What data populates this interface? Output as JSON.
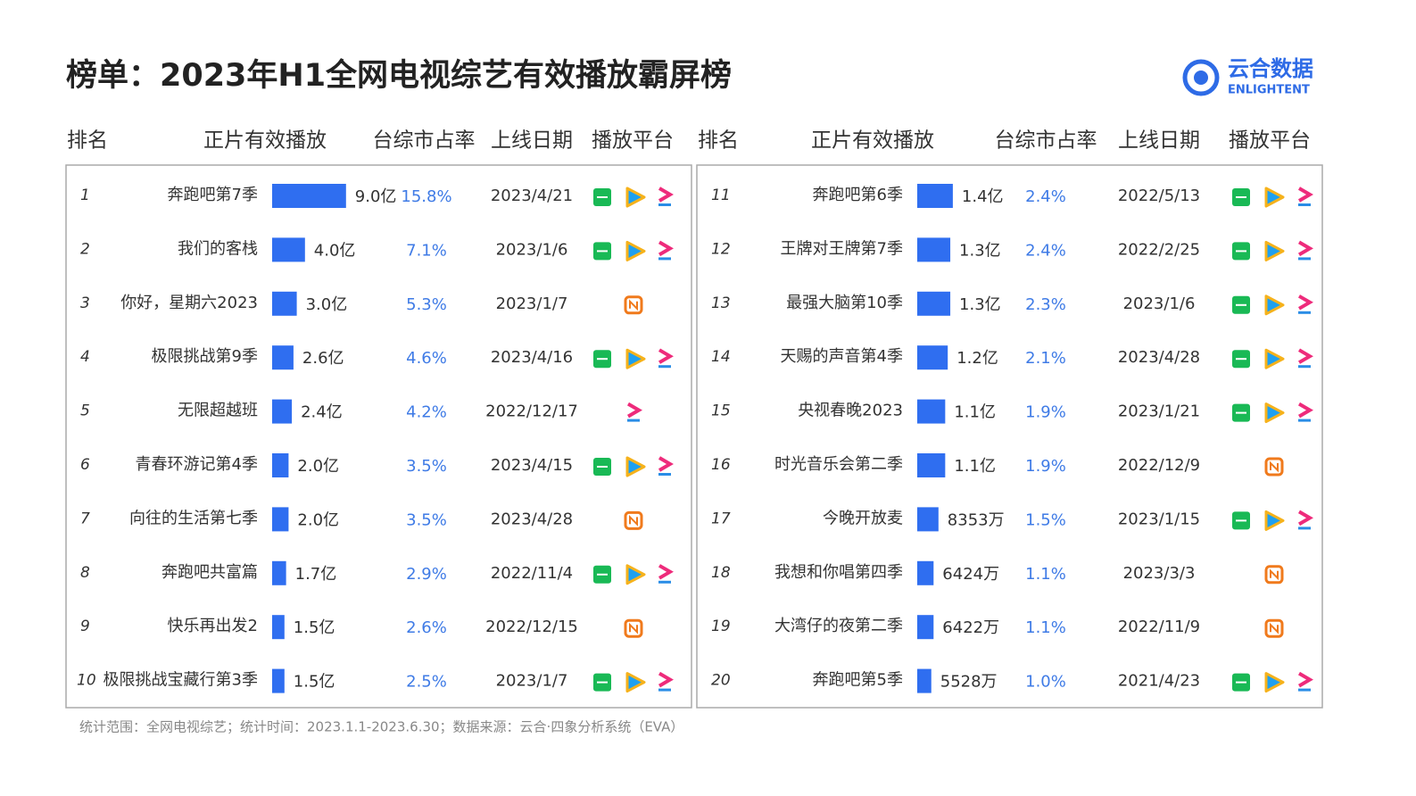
{
  "header": {
    "title": "榜单：2023年H1全网电视综艺有效播放霸屏榜"
  },
  "logo": {
    "name": "云合数据",
    "sub": "ENLIGHTENT"
  },
  "columns": {
    "left": [
      "排名",
      "正片有效播放",
      "台综市占率",
      "上线日期",
      "播放平台"
    ],
    "right": [
      "排名",
      "正片有效播放",
      "台综市占率",
      "上线日期",
      "播放平台"
    ]
  },
  "table": {
    "rows": [
      [
        1,
        "奔跑吧第7季",
        {
          "value": 9.0,
          "label": "9.0亿"
        },
        "15.8%",
        "2023/4/21"
      ],
      [
        2,
        "我们的客栈",
        {
          "value": 4.0,
          "label": "4.0亿"
        },
        "7.1%",
        "2023/1/6"
      ],
      [
        3,
        "你好，星期六2023",
        {
          "value": 3.0,
          "label": "3.0亿"
        },
        "5.3%",
        "2023/1/7"
      ],
      [
        4,
        "极限挑战第9季",
        {
          "value": 2.6,
          "label": "2.6亿"
        },
        "4.6%",
        "2023/4/16"
      ],
      [
        5,
        "无限超越班",
        {
          "value": 2.4,
          "label": "2.4亿"
        },
        "4.2%",
        "2022/12/17"
      ],
      [
        6,
        "青春环游记第4季",
        {
          "value": 2.0,
          "label": "2.0亿"
        },
        "3.5%",
        "2023/4/15"
      ],
      [
        7,
        "向往的生活第七季",
        {
          "value": 2.0,
          "label": "2.0亿"
        },
        "3.5%",
        "2023/4/28"
      ],
      [
        8,
        "奔跑吧共富篇",
        {
          "value": 1.7,
          "label": "1.7亿"
        },
        "2.9%",
        "2022/11/4"
      ],
      [
        9,
        "快乐再出发2",
        {
          "value": 1.5,
          "label": "1.5亿"
        },
        "2.6%",
        "2022/12/15"
      ],
      [
        10,
        "极限挑战宝藏行第3季",
        {
          "value": 1.5,
          "label": "1.5亿"
        },
        "2.5%",
        "2023/1/7"
      ],
      [
        11,
        "奔跑吧第6季",
        {
          "value": 1.4,
          "label": "1.4亿"
        },
        "2.4%",
        "2022/5/13"
      ],
      [
        12,
        "王牌对王牌第7季",
        {
          "value": 1.3,
          "label": "1.3亿"
        },
        "2.4%",
        "2022/2/25"
      ],
      [
        13,
        "最强大脑第10季",
        {
          "value": 1.3,
          "label": "1.3亿"
        },
        "2.3%",
        "2023/1/6"
      ],
      [
        14,
        "天赐的声音第4季",
        {
          "value": 1.2,
          "label": "1.2亿"
        },
        "2.1%",
        "2023/4/28"
      ],
      [
        15,
        "央视春晚2023",
        {
          "value": 1.1,
          "label": "1.1亿"
        },
        "1.9%",
        "2023/1/21"
      ],
      [
        16,
        "时光音乐会第二季",
        {
          "value": 1.1,
          "label": "1.1亿"
        },
        "1.9%",
        "2022/12/9"
      ],
      [
        17,
        "今晚开放麦",
        {
          "value": 0.8353,
          "label": "8353万"
        },
        "1.5%",
        "2023/1/15"
      ],
      [
        18,
        "我想和你唱第四季",
        {
          "value": 0.6424,
          "label": "6424万"
        },
        "1.1%",
        "2023/3/3"
      ],
      [
        19,
        "大湾仔的夜第二季",
        {
          "value": 0.6422,
          "label": "6422万"
        },
        "1.1%",
        "2022/11/9"
      ],
      [
        20,
        "奔跑吧第5季",
        {
          "value": 0.5528,
          "label": "5528万"
        },
        "1.0%",
        "2021/4/23"
      ]
    ]
  },
  "footer": {
    "note": "统计范围：全网电视综艺；统计时间：2023.1.1-2023.6.30；数据来源：云合·四象分析系统（EVA）"
  }
}
